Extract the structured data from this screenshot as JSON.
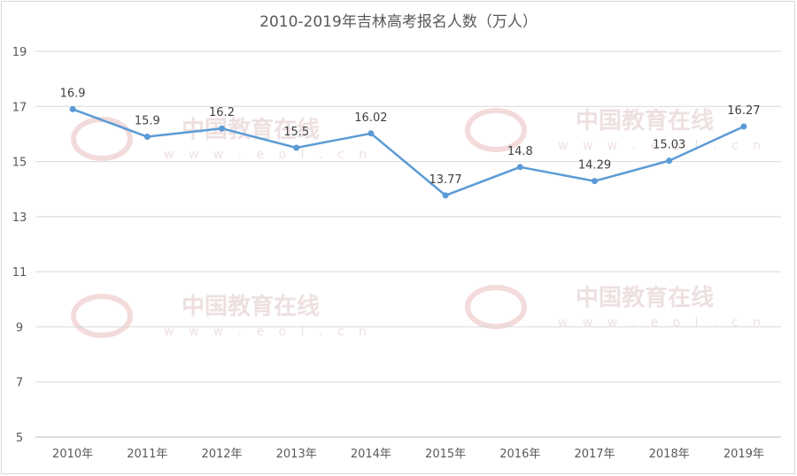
{
  "chart_data": {
    "type": "line",
    "title": "2010-2019年吉林高考报名人数（万人）",
    "xlabel": "",
    "ylabel": "",
    "categories": [
      "2010年",
      "2011年",
      "2012年",
      "2013年",
      "2014年",
      "2015年",
      "2016年",
      "2017年",
      "2018年",
      "2019年"
    ],
    "series": [
      {
        "values": [
          16.9,
          15.9,
          16.2,
          15.5,
          16.02,
          13.77,
          14.8,
          14.29,
          15.03,
          16.27
        ],
        "labels": [
          "16.9",
          "15.9",
          "16.2",
          "15.5",
          "16.02",
          "13.77",
          "14.8",
          "14.29",
          "15.03",
          "16.27"
        ],
        "color": "#5b9bd5"
      }
    ],
    "ylim": [
      5,
      19
    ],
    "yticks": [
      5,
      7,
      9,
      11,
      13,
      15,
      17,
      19
    ],
    "grid": true,
    "legend": "none"
  },
  "watermark": {
    "text": "中国教育在线",
    "subtext": "w w w . e o l . c n",
    "logo": "eol"
  },
  "colors": {
    "line": "#5b9bd5",
    "grid": "#d9d9d9",
    "watermark": "#e9d6d6"
  }
}
